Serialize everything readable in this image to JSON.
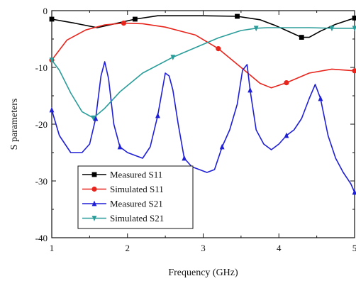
{
  "chart_data": {
    "type": "line",
    "xlabel": "Frequency (GHz)",
    "ylabel": "S parameters",
    "xlim": [
      1,
      5
    ],
    "ylim": [
      -40,
      0
    ],
    "xticks": [
      "1",
      "2",
      "3",
      "4",
      "5"
    ],
    "yticks": [
      "0",
      "-10",
      "-20",
      "-30",
      "-40"
    ],
    "legend_position": "bottom-left",
    "series": [
      {
        "name": "Measured S11",
        "color": "#000000",
        "marker": "square",
        "x": [
          1.0,
          1.3,
          1.6,
          1.9,
          2.1,
          2.4,
          2.7,
          3.0,
          3.45,
          3.75,
          3.95,
          4.15,
          4.3,
          4.4,
          4.55,
          4.75,
          5.0
        ],
        "y": [
          -1.5,
          -2.2,
          -3.0,
          -2.1,
          -1.5,
          -0.9,
          -0.9,
          -0.9,
          -1.0,
          -1.6,
          -2.6,
          -3.8,
          -4.7,
          -4.7,
          -3.6,
          -2.4,
          -1.3
        ]
      },
      {
        "name": "Simulated S11",
        "color": "#e8251c",
        "marker": "circle",
        "x": [
          1.0,
          1.2,
          1.45,
          1.7,
          1.95,
          2.2,
          2.5,
          2.9,
          3.2,
          3.5,
          3.75,
          3.9,
          4.1,
          4.4,
          4.7,
          5.0
        ],
        "y": [
          -8.7,
          -5.2,
          -3.4,
          -2.5,
          -2.2,
          -2.3,
          -2.9,
          -4.3,
          -6.7,
          -10.0,
          -12.8,
          -13.6,
          -12.7,
          -11.0,
          -10.3,
          -10.6
        ]
      },
      {
        "name": "Measured S21",
        "color": "#1f1fd6",
        "marker": "triangle-up",
        "x": [
          1.0,
          1.1,
          1.25,
          1.4,
          1.5,
          1.58,
          1.65,
          1.7,
          1.75,
          1.82,
          1.9,
          2.0,
          2.1,
          2.2,
          2.3,
          2.4,
          2.5,
          2.55,
          2.6,
          2.67,
          2.75,
          2.85,
          2.95,
          3.05,
          3.15,
          3.25,
          3.35,
          3.45,
          3.52,
          3.58,
          3.62,
          3.7,
          3.8,
          3.9,
          4.0,
          4.1,
          4.2,
          4.3,
          4.4,
          4.48,
          4.55,
          4.65,
          4.75,
          4.85,
          4.95,
          5.0
        ],
        "y": [
          -17.5,
          -22.0,
          -25.0,
          -25.0,
          -23.5,
          -19.0,
          -11.5,
          -9.0,
          -12.0,
          -20.0,
          -24.0,
          -25.0,
          -25.5,
          -26.0,
          -24.0,
          -18.5,
          -11.0,
          -11.5,
          -14.0,
          -20.0,
          -26.0,
          -27.5,
          -28.0,
          -28.5,
          -28.0,
          -24.0,
          -21.0,
          -16.5,
          -10.5,
          -9.5,
          -14.0,
          -21.0,
          -23.5,
          -24.5,
          -23.5,
          -22.0,
          -21.0,
          -19.0,
          -15.5,
          -13.0,
          -15.5,
          -22.0,
          -26.0,
          -28.5,
          -30.5,
          -32.0
        ]
      },
      {
        "name": "Simulated S21",
        "color": "#2a9d9a",
        "marker": "triangle-down",
        "x": [
          1.0,
          1.1,
          1.25,
          1.4,
          1.55,
          1.7,
          1.9,
          2.2,
          2.6,
          2.9,
          3.2,
          3.5,
          3.7,
          3.85,
          4.1,
          4.4,
          4.7,
          5.0
        ],
        "y": [
          -8.7,
          -10.5,
          -14.5,
          -17.8,
          -18.9,
          -17.2,
          -14.3,
          -11.0,
          -8.2,
          -6.5,
          -4.8,
          -3.5,
          -3.1,
          -3.0,
          -3.0,
          -3.0,
          -3.1,
          -3.1
        ]
      }
    ]
  }
}
